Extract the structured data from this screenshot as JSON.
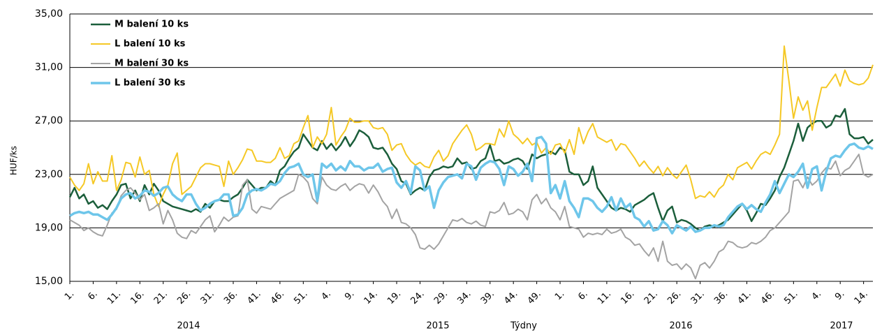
{
  "chart_data": {
    "type": "line",
    "y_label": "HUF/ks",
    "x_label": "Týdny",
    "x_group_labels": [
      "2014",
      "2015",
      "2016",
      "2017"
    ],
    "categories": [
      "1.",
      null,
      null,
      null,
      null,
      "6.",
      null,
      null,
      null,
      null,
      "11.",
      null,
      null,
      null,
      null,
      "16.",
      null,
      null,
      null,
      null,
      "21.",
      null,
      null,
      null,
      null,
      "26.",
      null,
      null,
      null,
      null,
      "31.",
      null,
      null,
      null,
      null,
      "36.",
      null,
      null,
      null,
      null,
      "41.",
      null,
      null,
      null,
      null,
      "46.",
      null,
      null,
      null,
      null,
      "51.",
      null,
      null,
      null,
      null,
      "4.",
      null,
      null,
      null,
      null,
      "9.",
      null,
      null,
      null,
      null,
      "14.",
      null,
      null,
      null,
      null,
      "19.",
      null,
      null,
      null,
      null,
      "24.",
      null,
      null,
      null,
      null,
      "29.",
      null,
      null,
      null,
      null,
      "34.",
      null,
      null,
      null,
      null,
      "39.",
      null,
      null,
      null,
      null,
      "44.",
      null,
      null,
      null,
      null,
      "49.",
      null,
      null,
      null,
      null,
      "1.",
      null,
      null,
      null,
      null,
      "6.",
      null,
      null,
      null,
      null,
      "11.",
      null,
      null,
      null,
      null,
      "16.",
      null,
      null,
      null,
      null,
      "21.",
      null,
      null,
      null,
      null,
      "26.",
      null,
      null,
      null,
      null,
      "31.",
      null,
      null,
      null,
      null,
      "36.",
      null,
      null,
      null,
      null,
      "41.",
      null,
      null,
      null,
      null,
      "46.",
      null,
      null,
      null,
      null,
      "51.",
      null,
      null,
      null,
      null,
      "4.",
      null,
      null,
      null,
      null,
      "9.",
      null,
      null,
      null,
      null,
      "14.",
      null,
      null
    ],
    "series": [
      {
        "name": "M balení 10 ks",
        "color": "#1b5e3b",
        "width": 2.5,
        "values": [
          21.3,
          22,
          21.2,
          21.5,
          20.8,
          21,
          20.5,
          20.7,
          20.4,
          21,
          21.5,
          22.2,
          22.3,
          21.2,
          21.8,
          21,
          22.2,
          21.5,
          22.3,
          21.8,
          21,
          20.8,
          20.6,
          20.5,
          20.4,
          20.3,
          20.2,
          20.4,
          20.2,
          20.8,
          20.5,
          21,
          21.1,
          21,
          21,
          21.3,
          21.5,
          22,
          22.6,
          22.2,
          21.8,
          22,
          22,
          22.5,
          22.2,
          23.3,
          23.6,
          24.2,
          24.7,
          25,
          26,
          25.5,
          25,
          24.8,
          25.5,
          24.9,
          25.3,
          24.8,
          25.2,
          25.8,
          25.1,
          25.6,
          26.3,
          26.1,
          25.8,
          25,
          24.9,
          25,
          24.5,
          23.8,
          23.4,
          22.5,
          22.3,
          21.5,
          21.8,
          22,
          21.8,
          22.8,
          23.3,
          23.4,
          23.6,
          23.5,
          23.6,
          24.2,
          23.8,
          23.9,
          23.4,
          23.5,
          24,
          24.2,
          25.2,
          24,
          24.1,
          23.8,
          23.9,
          24.1,
          24.2,
          24,
          23.4,
          24.5,
          24.2,
          24.4,
          24.5,
          24.7,
          24.5,
          25,
          24.8,
          23.2,
          23,
          23,
          22.2,
          22.5,
          23.6,
          22,
          21.5,
          21,
          20.5,
          20.3,
          20.5,
          20.4,
          20.2,
          20.7,
          20.9,
          21.1,
          21.4,
          21.6,
          20.5,
          19.5,
          20.3,
          20.6,
          19.4,
          19.6,
          19.5,
          19.3,
          19,
          18.8,
          19.1,
          19.2,
          19.1,
          19.2,
          19.4,
          19.6,
          20,
          20.4,
          20.8,
          20.3,
          19.5,
          20.1,
          20.8,
          20.7,
          21.2,
          21.8,
          22.8,
          23.5,
          24.5,
          25.5,
          26.8,
          25.5,
          26.5,
          26.8,
          27,
          27,
          26.5,
          26.7,
          27.4,
          27.3,
          27.9,
          26,
          25.7,
          25.7,
          25.8,
          25.3,
          25.6
        ]
      },
      {
        "name": "L balení 10 ks",
        "color": "#f5c825",
        "width": 2,
        "values": [
          22.8,
          22.2,
          21.8,
          22.3,
          23.8,
          22.3,
          23.2,
          22.5,
          22.5,
          24.4,
          21.8,
          22.6,
          23.9,
          23.8,
          22.8,
          24.3,
          23,
          23.3,
          21.5,
          20.6,
          21.5,
          22.2,
          23.8,
          24.6,
          21.5,
          21.8,
          22.1,
          22.8,
          23.5,
          23.8,
          23.8,
          23.7,
          23.6,
          22.1,
          24,
          23,
          23.5,
          24.1,
          24.9,
          24.8,
          24,
          24,
          23.9,
          23.9,
          24.2,
          25,
          24.2,
          24.4,
          25.3,
          25.5,
          26.5,
          27.4,
          25,
          25.8,
          25.3,
          26,
          28,
          25.2,
          25.8,
          26.3,
          27.2,
          26.9,
          26.9,
          27,
          27,
          26.5,
          26.4,
          26.5,
          26,
          24.8,
          25.2,
          25.3,
          24.5,
          24,
          23.7,
          23.9,
          23.6,
          23.5,
          24.3,
          24.8,
          24,
          24.4,
          25.3,
          25.8,
          26.3,
          26.7,
          26,
          24.8,
          25,
          25.3,
          25.3,
          25.2,
          26.4,
          25.8,
          27,
          26,
          25.7,
          25.3,
          25.7,
          25.2,
          25.4,
          24.6,
          25,
          24.5,
          25.2,
          25.3,
          24.6,
          25.6,
          24.5,
          26.5,
          25.3,
          26.2,
          26.8,
          25.8,
          25.6,
          25.4,
          25.6,
          24.8,
          25.3,
          25.2,
          24.7,
          24.2,
          23.6,
          24,
          23.5,
          23.1,
          23.6,
          22.9,
          23.5,
          23,
          22.7,
          23.2,
          23.7,
          22.6,
          21.2,
          21.4,
          21.3,
          21.7,
          21.3,
          21.9,
          22.2,
          23,
          22.6,
          23.5,
          23.7,
          23.9,
          23.4,
          24,
          24.5,
          24.7,
          24.5,
          25.2,
          26,
          32.6,
          30,
          27.2,
          28.8,
          27.8,
          28.5,
          26.3,
          28,
          29.5,
          29.5,
          30,
          30.5,
          29.6,
          30.8,
          30,
          29.8,
          29.7,
          29.8,
          30.2,
          31.2
        ]
      },
      {
        "name": "M balení 30 ks",
        "color": "#a3a3a3",
        "width": 2,
        "values": [
          19.6,
          19.4,
          19.2,
          18.8,
          19,
          18.7,
          18.5,
          18.4,
          19.2,
          20.1,
          20.4,
          21.4,
          21.8,
          22,
          21.6,
          21.1,
          21.5,
          20.3,
          20.5,
          20.8,
          19.3,
          20.3,
          19.6,
          18.6,
          18.3,
          18.2,
          18.8,
          18.6,
          19.1,
          19.6,
          19.9,
          18.7,
          19.2,
          19.8,
          19.5,
          19.8,
          19.9,
          22.2,
          22.6,
          20.4,
          20.1,
          20.6,
          20.5,
          20.4,
          20.8,
          21.2,
          21.4,
          21.6,
          21.8,
          23,
          22.8,
          22.4,
          21.2,
          20.8,
          22.8,
          22.2,
          21.9,
          21.8,
          22.1,
          22.3,
          21.8,
          22.1,
          22.3,
          22.2,
          21.6,
          22.2,
          21.7,
          21,
          20.6,
          19.7,
          20.4,
          19.4,
          19.3,
          19,
          18.5,
          17.5,
          17.4,
          17.7,
          17.4,
          17.8,
          18.4,
          19,
          19.6,
          19.5,
          19.7,
          19.4,
          19.3,
          19.5,
          19.2,
          19.1,
          20.2,
          20.1,
          20.3,
          20.9,
          20,
          20.1,
          20.4,
          20.2,
          19.6,
          21.1,
          21.5,
          20.8,
          21.2,
          20.5,
          20.2,
          19.6,
          20.6,
          19.1,
          19,
          18.9,
          18.3,
          18.6,
          18.5,
          18.6,
          18.5,
          18.9,
          18.6,
          18.7,
          18.9,
          18.3,
          18.1,
          17.7,
          17.8,
          17.3,
          16.9,
          17.5,
          16.5,
          18,
          16.5,
          16.2,
          16.3,
          15.9,
          16.3,
          16,
          15.2,
          16.2,
          16.4,
          16,
          16.5,
          17.2,
          17.4,
          18,
          17.9,
          17.6,
          17.5,
          17.6,
          17.9,
          17.8,
          18,
          18.3,
          18.8,
          19,
          19.4,
          19.8,
          20.2,
          22.5,
          22.6,
          22,
          22.8,
          22.2,
          22.5,
          23.1,
          23.5,
          23.4,
          24,
          22.9,
          23.3,
          23.5,
          24,
          24.5,
          23,
          22.8,
          23
        ]
      },
      {
        "name": "L balení 30 ks",
        "color": "#6ec6ea",
        "width": 3.5,
        "values": [
          19.9,
          20.1,
          20.2,
          20.1,
          20.2,
          20,
          20,
          19.8,
          19.6,
          20,
          20.5,
          21.2,
          21.5,
          21.6,
          21.2,
          21.4,
          21.8,
          21.7,
          21.4,
          21.6,
          22,
          22.1,
          21.5,
          21.2,
          21,
          21.5,
          21.5,
          20.8,
          20.3,
          20.5,
          20.8,
          21,
          21.1,
          21.5,
          21.5,
          19.9,
          20,
          20.5,
          21.5,
          21.8,
          21.9,
          21.8,
          22,
          22.3,
          22.2,
          22.5,
          23.1,
          23.5,
          23.6,
          23.8,
          23,
          22.8,
          23,
          21,
          23.8,
          23.5,
          23.8,
          23.3,
          23.6,
          23.3,
          24,
          23.6,
          23.6,
          23.3,
          23.5,
          23.5,
          23.8,
          23.2,
          23.4,
          23.5,
          22.4,
          22,
          22.5,
          21.6,
          23.6,
          23.3,
          21.8,
          22.1,
          20.5,
          21.8,
          22.4,
          22.8,
          22.9,
          23,
          22.7,
          23.8,
          23.6,
          22.6,
          23.5,
          23.8,
          24,
          23.9,
          23.4,
          22.2,
          23.6,
          23.4,
          22.9,
          23.2,
          23.8,
          22.5,
          25.7,
          25.8,
          25.3,
          21.6,
          22.2,
          21.2,
          22.5,
          21,
          20.5,
          19.8,
          21.2,
          21.2,
          21,
          20.5,
          20.2,
          20.6,
          21.3,
          20.3,
          21.2,
          20.5,
          20.8,
          19.8,
          19.6,
          19.1,
          19.5,
          18.8,
          18.9,
          19.5,
          19.2,
          18.6,
          19.2,
          19,
          18.8,
          19.1,
          18.7,
          18.8,
          19,
          19,
          19.2,
          19.1,
          19.2,
          19.8,
          20.2,
          20.6,
          20.8,
          20.4,
          20.7,
          20.4,
          20.2,
          20.9,
          21.5,
          22.5,
          21.6,
          22.3,
          23,
          22.8,
          23.2,
          23.8,
          22,
          23.4,
          23.6,
          21.8,
          23.2,
          24.2,
          24.4,
          24.3,
          24.8,
          25.2,
          25.3,
          25,
          24.9,
          25.1,
          24.9
        ]
      }
    ],
    "ylim": [
      15,
      35
    ],
    "yticks": [
      {
        "value": 15,
        "label": "15,00"
      },
      {
        "value": 19,
        "label": "19,00"
      },
      {
        "value": 23,
        "label": "23,00"
      },
      {
        "value": 27,
        "label": "27,00"
      },
      {
        "value": 31,
        "label": "31,00"
      },
      {
        "value": 35,
        "label": "35,00"
      }
    ],
    "grid": true,
    "legend": "upper left"
  }
}
